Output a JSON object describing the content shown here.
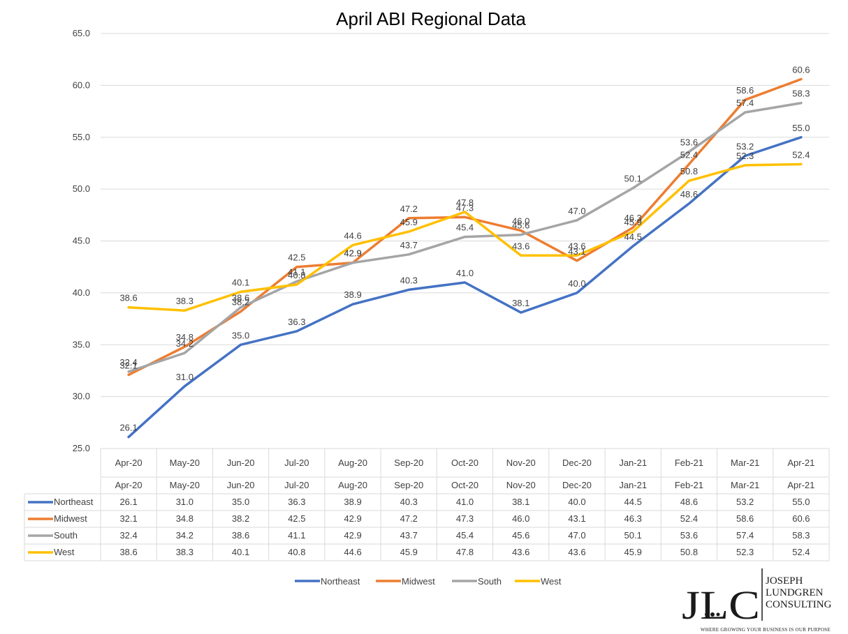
{
  "chart_data": {
    "type": "line",
    "title": "April ABI Regional Data",
    "categories": [
      "Apr-20",
      "May-20",
      "Jun-20",
      "Jul-20",
      "Aug-20",
      "Sep-20",
      "Oct-20",
      "Nov-20",
      "Dec-20",
      "Jan-21",
      "Feb-21",
      "Mar-21",
      "Apr-21"
    ],
    "ylim": [
      25.0,
      65.0
    ],
    "yticks": [
      "25.0",
      "30.0",
      "35.0",
      "40.0",
      "45.0",
      "50.0",
      "55.0",
      "60.0",
      "65.0"
    ],
    "grid": true,
    "legend": "bottom",
    "data_table": true,
    "series": [
      {
        "name": "Northeast",
        "color": "#4472C4",
        "values": [
          26.1,
          31.0,
          35.0,
          36.3,
          38.9,
          40.3,
          41.0,
          38.1,
          40.0,
          44.5,
          48.6,
          53.2,
          55.0
        ]
      },
      {
        "name": "Midwest",
        "color": "#ED7D31",
        "values": [
          32.1,
          34.8,
          38.2,
          42.5,
          42.9,
          47.2,
          47.3,
          46.0,
          43.1,
          46.3,
          52.4,
          58.6,
          60.6
        ]
      },
      {
        "name": "South",
        "color": "#A5A5A5",
        "values": [
          32.4,
          34.2,
          38.6,
          41.1,
          42.9,
          43.7,
          45.4,
          45.6,
          47.0,
          50.1,
          53.6,
          57.4,
          58.3
        ]
      },
      {
        "name": "West",
        "color": "#FFC000",
        "values": [
          38.6,
          38.3,
          40.1,
          40.8,
          44.6,
          45.9,
          47.8,
          43.6,
          43.6,
          45.9,
          50.8,
          52.3,
          52.4
        ]
      }
    ]
  },
  "logo": {
    "mark": "JLC",
    "name_lines": [
      "JOSEPH",
      "LUNDGREN",
      "CONSULTING"
    ],
    "tagline": "WHERE GROWING YOUR BUSINESS IS OUR PURPOSE"
  }
}
